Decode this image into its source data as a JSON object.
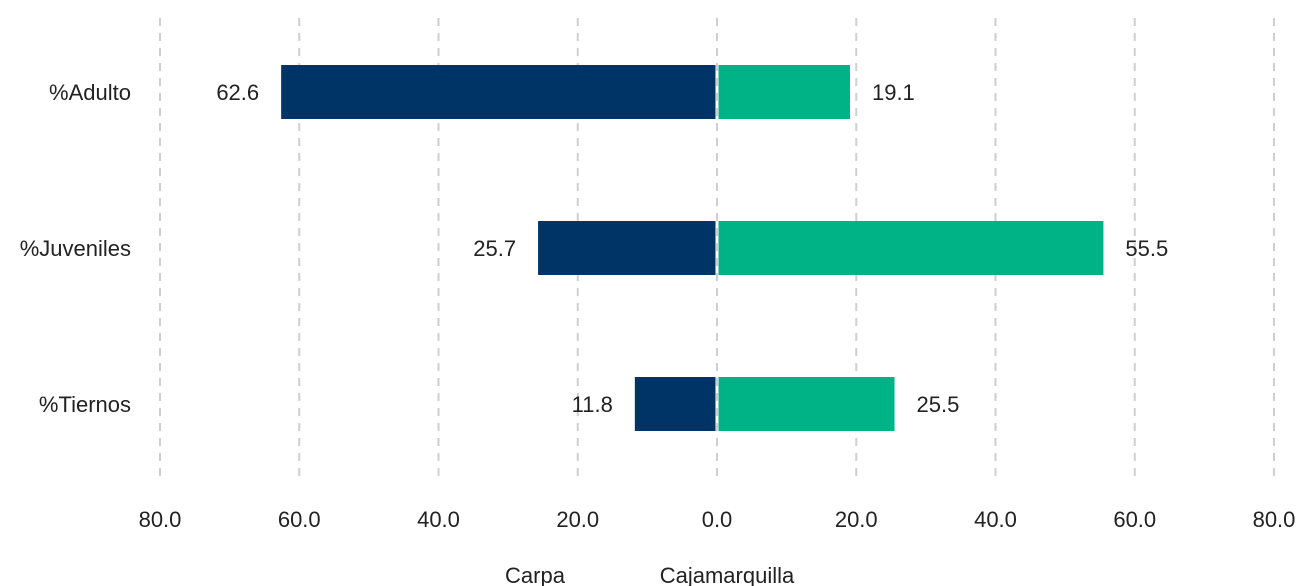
{
  "chart_data": {
    "type": "bar",
    "orientation": "horizontal-diverging",
    "categories": [
      "%Adulto",
      "%Juveniles",
      "%Tiernos"
    ],
    "series": [
      {
        "name": "Carpa",
        "values": [
          62.6,
          25.7,
          11.8
        ],
        "color": "#003366",
        "side": "left"
      },
      {
        "name": "Cajamarquilla",
        "values": [
          19.1,
          55.5,
          25.5
        ],
        "color": "#00b386",
        "side": "right"
      }
    ],
    "value_labels": {
      "Carpa": [
        "62.6",
        "25.7",
        "11.8"
      ],
      "Cajamarquilla": [
        "19.1",
        "55.5",
        "25.5"
      ]
    },
    "xlim": [
      -80,
      80
    ],
    "xticks": [
      -80,
      -60,
      -40,
      -20,
      0,
      20,
      40,
      60,
      80
    ],
    "xtick_labels": [
      "80.0",
      "60.0",
      "40.0",
      "20.0",
      "0.0",
      "20.0",
      "40.0",
      "60.0",
      "80.0"
    ],
    "grid": true,
    "legend": "bottom-center",
    "title": "",
    "xlabel": "",
    "ylabel": ""
  }
}
